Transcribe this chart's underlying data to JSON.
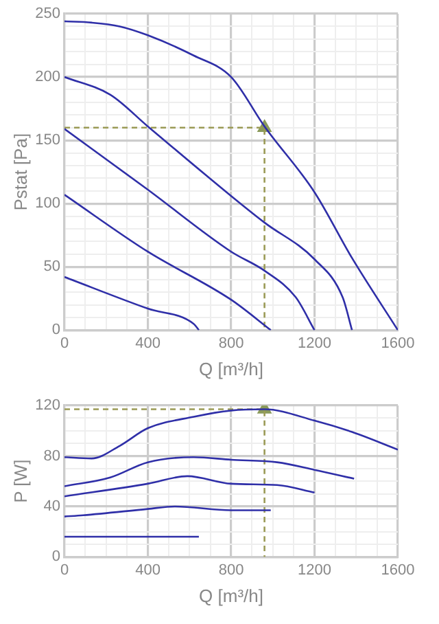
{
  "chart_data": [
    {
      "type": "line",
      "xlabel": "Q [m³/h]",
      "ylabel": "Pstat [Pa]",
      "xlim": [
        0,
        1600
      ],
      "ylim": [
        0,
        250
      ],
      "grid": true,
      "legend": false,
      "marker": "none",
      "line_style": "solid",
      "xticks": [
        0,
        {
          "value": 100,
          "label": null
        },
        {
          "value": 200,
          "label": null
        },
        {
          "value": 300,
          "label": null
        },
        400,
        {
          "value": 500,
          "label": null
        },
        {
          "value": 600,
          "label": null
        },
        {
          "value": 700,
          "label": null
        },
        800,
        {
          "value": 900,
          "label": null
        },
        {
          "value": 1000,
          "label": null
        },
        {
          "value": 1100,
          "label": null
        },
        1200,
        {
          "value": 1300,
          "label": null
        },
        {
          "value": 1400,
          "label": null
        },
        {
          "value": 1500,
          "label": null
        },
        1600
      ],
      "yticks": [
        0,
        {
          "value": 10,
          "label": null
        },
        {
          "value": 20,
          "label": null
        },
        {
          "value": 30,
          "label": null
        },
        {
          "value": 40,
          "label": null
        },
        50,
        {
          "value": 60,
          "label": null
        },
        {
          "value": 70,
          "label": null
        },
        {
          "value": 80,
          "label": null
        },
        {
          "value": 90,
          "label": null
        },
        100,
        {
          "value": 110,
          "label": null
        },
        {
          "value": 120,
          "label": null
        },
        {
          "value": 130,
          "label": null
        },
        {
          "value": 140,
          "label": null
        },
        150,
        {
          "value": 160,
          "label": null
        },
        {
          "value": 170,
          "label": null
        },
        {
          "value": 180,
          "label": null
        },
        {
          "value": 190,
          "label": null
        },
        200,
        {
          "value": 210,
          "label": null
        },
        {
          "value": 220,
          "label": null
        },
        {
          "value": 230,
          "label": null
        },
        {
          "value": 240,
          "label": null
        },
        250
      ],
      "series": [
        {
          "color": "#2f2fa8",
          "x": [
            0,
            130,
            265,
            400,
            620,
            800,
            960,
            1200,
            1380,
            1600
          ],
          "values": [
            244,
            243,
            240,
            233,
            217,
            200,
            161,
            109,
            57,
            0
          ]
        },
        {
          "color": "#2f2fa8",
          "x": [
            0,
            220,
            400,
            800,
            960,
            1200,
            1335,
            1380
          ],
          "values": [
            200,
            186,
            161,
            106,
            85,
            56,
            26,
            0
          ]
        },
        {
          "color": "#2f2fa8",
          "x": [
            0,
            400,
            800,
            960,
            1110,
            1200
          ],
          "values": [
            159,
            111,
            62,
            47,
            26,
            0
          ]
        },
        {
          "color": "#2f2fa8",
          "x": [
            0,
            400,
            800,
            990
          ],
          "values": [
            107,
            62,
            24,
            0
          ]
        },
        {
          "color": "#2f2fa8",
          "x": [
            0,
            400,
            620,
            645
          ],
          "values": [
            42,
            17,
            5,
            0
          ]
        },
        {
          "type": "line",
          "line_style": "dashed",
          "color": "#9a9a55",
          "x": [
            0,
            960,
            960
          ],
          "values": [
            160,
            160,
            0
          ]
        },
        {
          "type": "scatter",
          "marker": "triangle",
          "color": "#8a9a5b",
          "x": [
            960
          ],
          "values": [
            160
          ]
        }
      ]
    },
    {
      "type": "line",
      "xlabel": "Q [m³/h]",
      "ylabel": "P [W]",
      "xlim": [
        0,
        1600
      ],
      "ylim": [
        0,
        120
      ],
      "grid": true,
      "legend": false,
      "marker": "none",
      "line_style": "solid",
      "xticks": [
        0,
        {
          "value": 100,
          "label": null
        },
        {
          "value": 200,
          "label": null
        },
        {
          "value": 300,
          "label": null
        },
        400,
        {
          "value": 500,
          "label": null
        },
        {
          "value": 600,
          "label": null
        },
        {
          "value": 700,
          "label": null
        },
        800,
        {
          "value": 900,
          "label": null
        },
        {
          "value": 1000,
          "label": null
        },
        {
          "value": 1100,
          "label": null
        },
        1200,
        {
          "value": 1300,
          "label": null
        },
        {
          "value": 1400,
          "label": null
        },
        {
          "value": 1500,
          "label": null
        },
        1600
      ],
      "yticks": [
        0,
        {
          "value": 10,
          "label": null
        },
        {
          "value": 20,
          "label": null
        },
        {
          "value": 30,
          "label": null
        },
        40,
        {
          "value": 50,
          "label": null
        },
        {
          "value": 60,
          "label": null
        },
        {
          "value": 70,
          "label": null
        },
        80,
        {
          "value": 90,
          "label": null
        },
        {
          "value": 100,
          "label": null
        },
        {
          "value": 110,
          "label": null
        },
        120
      ],
      "series": [
        {
          "color": "#2f2fa8",
          "x": [
            0,
            130,
            265,
            400,
            620,
            800,
            960,
            1200,
            1380,
            1600
          ],
          "values": [
            79,
            78,
            88,
            102,
            111,
            116,
            117,
            108,
            99,
            85
          ]
        },
        {
          "color": "#2f2fa8",
          "x": [
            0,
            220,
            400,
            620,
            800,
            1020,
            1200,
            1390
          ],
          "values": [
            56,
            63,
            75,
            79,
            77,
            75,
            69,
            62
          ]
        },
        {
          "color": "#2f2fa8",
          "x": [
            0,
            400,
            590,
            800,
            1020,
            1200
          ],
          "values": [
            48,
            58,
            64,
            58,
            57,
            51
          ]
        },
        {
          "color": "#2f2fa8",
          "x": [
            0,
            90,
            400,
            530,
            800,
            990
          ],
          "values": [
            32,
            33,
            38,
            40,
            37,
            37
          ]
        },
        {
          "color": "#2f2fa8",
          "x": [
            0,
            645
          ],
          "values": [
            16,
            16
          ]
        },
        {
          "type": "line",
          "line_style": "dashed",
          "color": "#9a9a55",
          "x": [
            0,
            960,
            960
          ],
          "values": [
            117,
            117,
            0
          ]
        },
        {
          "type": "scatter",
          "marker": "triangle",
          "color": "#8a9a5b",
          "x": [
            960
          ],
          "values": [
            117
          ]
        }
      ]
    }
  ]
}
